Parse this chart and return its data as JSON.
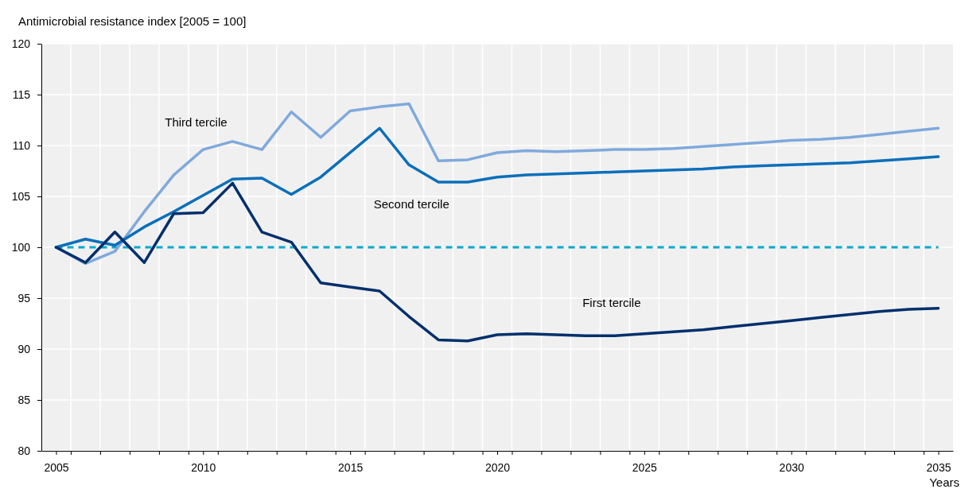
{
  "chart_data": {
    "type": "line",
    "ylabel": "Antimicrobial resistance index [2005 = 100]",
    "xlabel": "Years",
    "x": [
      2005,
      2006,
      2007,
      2008,
      2009,
      2010,
      2011,
      2012,
      2013,
      2014,
      2015,
      2016,
      2017,
      2018,
      2019,
      2020,
      2021,
      2022,
      2023,
      2024,
      2025,
      2026,
      2027,
      2028,
      2029,
      2030,
      2031,
      2032,
      2033,
      2034,
      2035
    ],
    "series": [
      {
        "name": "Third tercile",
        "color": "#80a9dc",
        "values": [
          100,
          98.4,
          99.6,
          103.5,
          107.1,
          109.6,
          110.4,
          109.6,
          113.3,
          110.8,
          113.4,
          113.8,
          114.1,
          108.5,
          108.6,
          109.3,
          109.5,
          109.4,
          109.5,
          109.6,
          109.6,
          109.7,
          109.9,
          110.1,
          110.3,
          110.5,
          110.6,
          110.8,
          111.1,
          111.4,
          111.7
        ]
      },
      {
        "name": "Second tercile",
        "color": "#0a6fba",
        "values": [
          100,
          100.8,
          100.2,
          102.0,
          103.5,
          105.1,
          106.7,
          106.8,
          105.2,
          106.9,
          109.3,
          111.7,
          108.1,
          106.4,
          106.4,
          106.9,
          107.1,
          107.2,
          107.3,
          107.4,
          107.5,
          107.6,
          107.7,
          107.9,
          108.0,
          108.1,
          108.2,
          108.3,
          108.5,
          108.7,
          108.9
        ]
      },
      {
        "name": "First tercile",
        "color": "#002f6c",
        "values": [
          100,
          98.5,
          101.5,
          98.5,
          103.3,
          103.4,
          106.3,
          101.5,
          100.5,
          96.5,
          96.1,
          95.7,
          93.2,
          90.9,
          90.8,
          91.4,
          91.5,
          91.4,
          91.3,
          91.3,
          91.5,
          91.7,
          91.9,
          92.2,
          92.5,
          92.8,
          93.1,
          93.4,
          93.7,
          93.9,
          94.0
        ]
      }
    ],
    "ref_lines": [
      {
        "axis": "y",
        "value": 100,
        "color": "#00a9cc",
        "line_style": "dashed"
      }
    ],
    "xlim": [
      2004.5,
      2035.5
    ],
    "xticks": [
      2005,
      {
        "value": 2005.5,
        "label": null
      },
      {
        "value": 2006.5,
        "label": null
      },
      {
        "value": 2007.5,
        "label": null
      },
      {
        "value": 2008.5,
        "label": null
      },
      {
        "value": 2009.5,
        "label": null
      },
      2010,
      {
        "value": 2010.5,
        "label": null
      },
      {
        "value": 2011.5,
        "label": null
      },
      {
        "value": 2012.5,
        "label": null
      },
      {
        "value": 2013.5,
        "label": null
      },
      {
        "value": 2014.5,
        "label": null
      },
      2015,
      {
        "value": 2015.5,
        "label": null
      },
      {
        "value": 2016.5,
        "label": null
      },
      {
        "value": 2017.5,
        "label": null
      },
      {
        "value": 2018.5,
        "label": null
      },
      {
        "value": 2019.5,
        "label": null
      },
      2020,
      {
        "value": 2020.5,
        "label": null
      },
      {
        "value": 2021.5,
        "label": null
      },
      {
        "value": 2022.5,
        "label": null
      },
      {
        "value": 2023.5,
        "label": null
      },
      {
        "value": 2024.5,
        "label": null
      },
      2025,
      {
        "value": 2025.5,
        "label": null
      },
      {
        "value": 2026.5,
        "label": null
      },
      {
        "value": 2027.5,
        "label": null
      },
      {
        "value": 2028.5,
        "label": null
      },
      {
        "value": 2029.5,
        "label": null
      },
      2030,
      {
        "value": 2030.5,
        "label": null
      },
      {
        "value": 2031.5,
        "label": null
      },
      {
        "value": 2032.5,
        "label": null
      },
      {
        "value": 2033.5,
        "label": null
      },
      {
        "value": 2034.5,
        "label": null
      },
      2035
    ],
    "ylim": [
      80,
      120
    ],
    "yticks": [
      80,
      85,
      90,
      95,
      100,
      105,
      110,
      115,
      120
    ],
    "grid": true,
    "legend": false,
    "marker": "none",
    "line_style": "solid"
  }
}
